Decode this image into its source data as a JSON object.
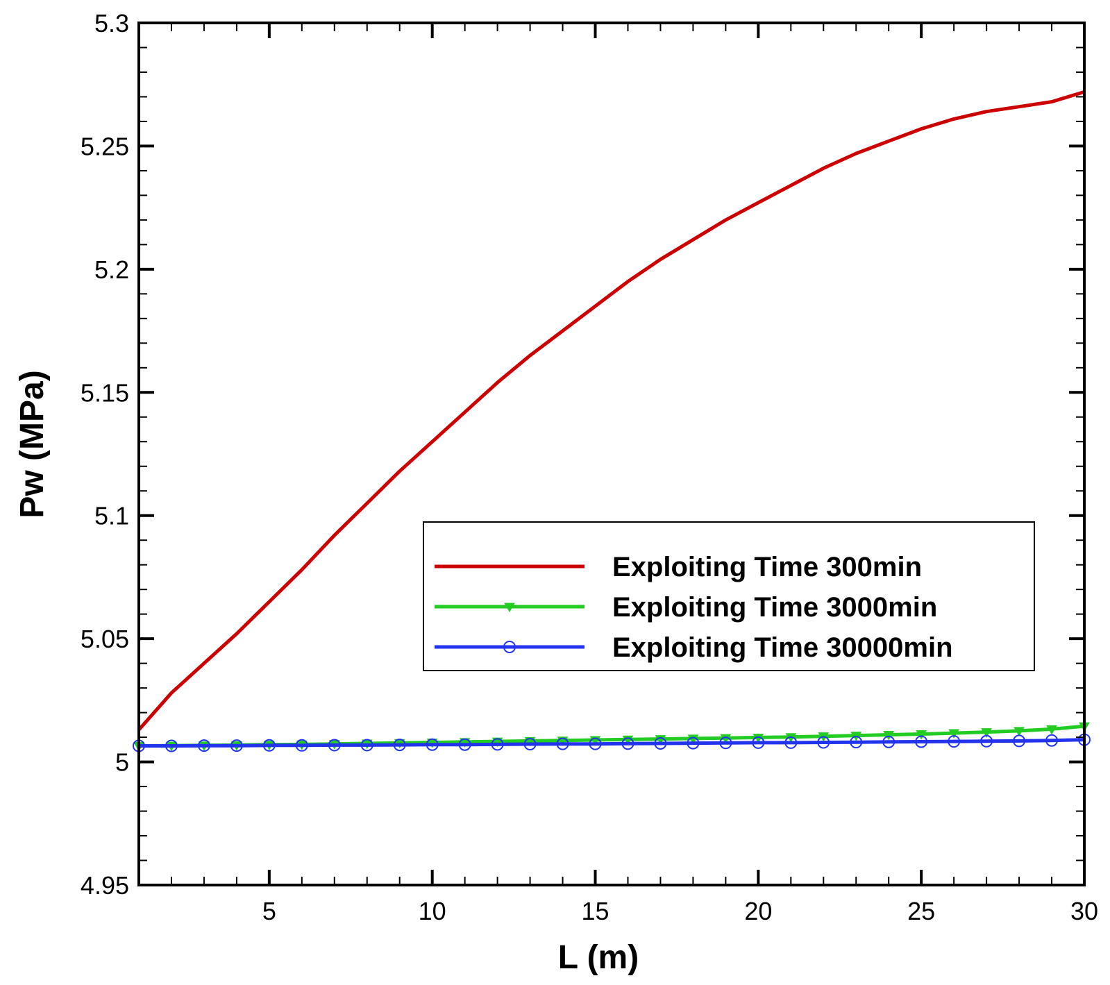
{
  "chart_data": {
    "type": "line",
    "title": "",
    "xlabel": "L (m)",
    "ylabel": "Pw (MPa)",
    "xlim": [
      1,
      30
    ],
    "ylim": [
      4.95,
      5.3
    ],
    "grid": false,
    "legend_position": "right-middle",
    "x_ticks": [
      5,
      10,
      15,
      20,
      25,
      30
    ],
    "x_tick_labels": [
      "5",
      "10",
      "15",
      "20",
      "25",
      "30"
    ],
    "y_ticks": [
      4.95,
      5,
      5.05,
      5.1,
      5.15,
      5.2,
      5.25,
      5.3
    ],
    "y_tick_labels": [
      "4.95",
      "5",
      "5.05",
      "5.1",
      "5.15",
      "5.2",
      "5.25",
      "5.3"
    ],
    "series": [
      {
        "name": "Exploiting Time 300min",
        "color": "#cc0000",
        "marker": "none",
        "x": [
          1,
          2,
          3,
          4,
          5,
          6,
          7,
          8,
          9,
          10,
          11,
          12,
          13,
          14,
          15,
          16,
          17,
          18,
          19,
          20,
          21,
          22,
          23,
          24,
          25,
          26,
          27,
          28,
          29,
          30
        ],
        "y": [
          5.013,
          5.028,
          5.04,
          5.052,
          5.065,
          5.078,
          5.092,
          5.105,
          5.118,
          5.13,
          5.142,
          5.154,
          5.165,
          5.175,
          5.185,
          5.195,
          5.204,
          5.212,
          5.22,
          5.227,
          5.234,
          5.241,
          5.247,
          5.252,
          5.257,
          5.261,
          5.264,
          5.266,
          5.268,
          5.272
        ]
      },
      {
        "name": "Exploiting Time 3000min",
        "color": "#22cc22",
        "marker": "triangle-down",
        "x": [
          1,
          2,
          3,
          4,
          5,
          6,
          7,
          8,
          9,
          10,
          11,
          12,
          13,
          14,
          15,
          16,
          17,
          18,
          19,
          20,
          21,
          22,
          23,
          24,
          25,
          26,
          27,
          28,
          29,
          30
        ],
        "y": [
          5.0065,
          5.0066,
          5.0067,
          5.0068,
          5.007,
          5.0071,
          5.0073,
          5.0075,
          5.0077,
          5.0079,
          5.0081,
          5.0083,
          5.0085,
          5.0087,
          5.0089,
          5.0091,
          5.0093,
          5.0095,
          5.0097,
          5.0099,
          5.0101,
          5.0104,
          5.0107,
          5.011,
          5.0113,
          5.0117,
          5.0121,
          5.0126,
          5.0133,
          5.0145
        ]
      },
      {
        "name": "Exploiting Time 30000min",
        "color": "#2233ee",
        "marker": "circle-open",
        "x": [
          1,
          2,
          3,
          4,
          5,
          6,
          7,
          8,
          9,
          10,
          11,
          12,
          13,
          14,
          15,
          16,
          17,
          18,
          19,
          20,
          21,
          22,
          23,
          24,
          25,
          26,
          27,
          28,
          29,
          30
        ],
        "y": [
          5.0065,
          5.0065,
          5.0066,
          5.0066,
          5.0067,
          5.0067,
          5.0068,
          5.0068,
          5.0069,
          5.007,
          5.007,
          5.0071,
          5.0072,
          5.0073,
          5.0073,
          5.0074,
          5.0075,
          5.0076,
          5.0077,
          5.0078,
          5.0078,
          5.0079,
          5.008,
          5.0081,
          5.0082,
          5.0083,
          5.0084,
          5.0085,
          5.0087,
          5.009
        ]
      }
    ]
  }
}
